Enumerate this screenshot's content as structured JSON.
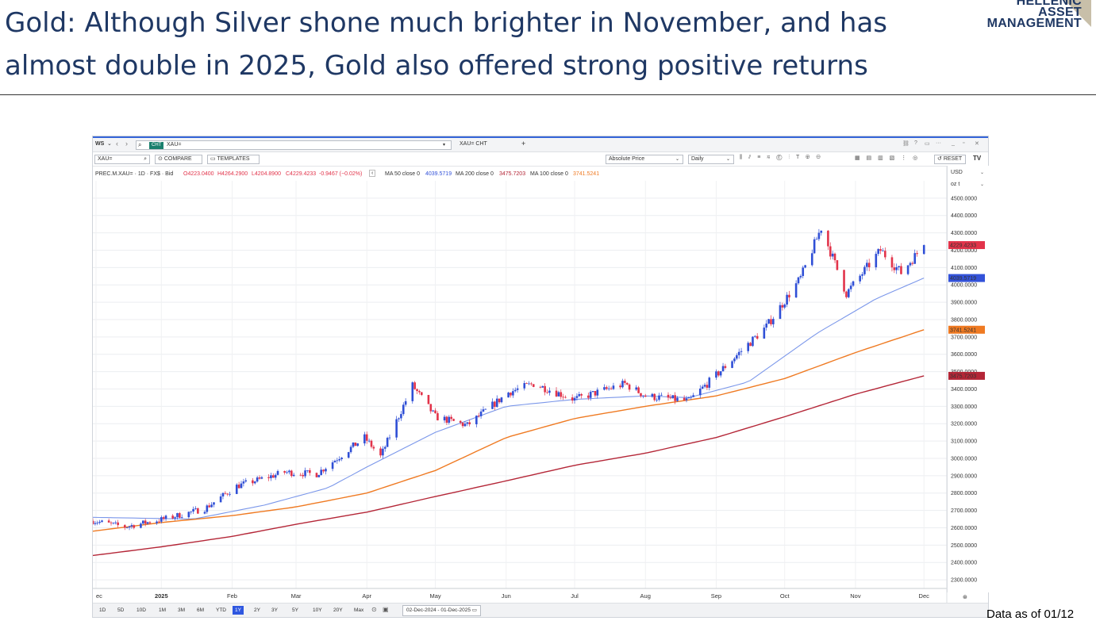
{
  "title": "Gold: Although Silver shone much brighter in November, and has almost double in 2025, Gold also offered strong positive returns",
  "logo": {
    "line1": "HELLENIC",
    "line2": "ASSET",
    "line3": "MANAGEMENT"
  },
  "footnote": "Data as of 01/12",
  "window": {
    "workspace": "WS",
    "chip": "CHT",
    "ric": "XAU=",
    "tab": "XAU= CHT",
    "plus": "+",
    "search_value": "XAU=",
    "compare": "COMPARE",
    "templates": "TEMPLATES",
    "price_type": "Absolute Price",
    "interval": "Daily",
    "reset": "RESET",
    "currency": "USD",
    "unit": "oz t",
    "legend_main": "PREC.M.XAU= · 1D · FX$ · Bid",
    "legend_o": "O4223.0400",
    "legend_h": "H4264.2900",
    "legend_l": "L4204.8900",
    "legend_c": "C4229.4233",
    "legend_chg": "-0.9467 (−0.02%)",
    "ma50_label": "MA 50 close 0",
    "ma50_value": "4039.5719",
    "ma200_label": "MA 200 close 0",
    "ma200_value": "3475.7203",
    "ma100_label": "MA 100 close 0",
    "ma100_value": "3741.5241",
    "ranges": [
      "1D",
      "5D",
      "10D",
      "1M",
      "3M",
      "6M",
      "YTD",
      "1Y",
      "2Y",
      "3Y",
      "5Y",
      "10Y",
      "20Y",
      "Max"
    ],
    "active_range": "1Y",
    "date_range": "02-Dec-2024 - 01-Dec-2025",
    "colors": {
      "up": "#2f4fd6",
      "down": "#e2334a",
      "ma50": "#7b97ea",
      "ma100": "#ef7a22",
      "ma200": "#b42637",
      "accent": "#3565d8"
    }
  },
  "chart_data": {
    "type": "line",
    "title": "",
    "xlabel": "",
    "ylabel": "",
    "ylim": [
      2250,
      4600
    ],
    "y_ticks": [
      "2300.0000",
      "2400.0000",
      "2500.0000",
      "2600.0000",
      "2700.0000",
      "2800.0000",
      "2900.0000",
      "3000.0000",
      "3100.0000",
      "3200.0000",
      "3300.0000",
      "3400.0000",
      "3500.0000",
      "3600.0000",
      "3700.0000",
      "3800.0000",
      "3900.0000",
      "4000.0000",
      "4100.0000",
      "4200.0000",
      "4300.0000",
      "4400.0000",
      "4500.0000"
    ],
    "x_tick_labels": [
      "ec",
      "2025",
      "Feb",
      "Mar",
      "Apr",
      "May",
      "Jun",
      "Jul",
      "Aug",
      "Sep",
      "Oct",
      "Nov",
      "Dec"
    ],
    "x_tick_dates": [
      "2024-12-02",
      "2025-01-01",
      "2025-02-01",
      "2025-03-01",
      "2025-04-01",
      "2025-05-01",
      "2025-06-01",
      "2025-07-01",
      "2025-08-01",
      "2025-09-01",
      "2025-10-01",
      "2025-11-01",
      "2025-12-01"
    ],
    "x_start": "2024-12-02",
    "x_end": "2025-12-11",
    "series_close": {
      "dates": [
        "2024-12-02",
        "2024-12-16",
        "2025-01-02",
        "2025-01-20",
        "2025-02-03",
        "2025-02-24",
        "2025-03-10",
        "2025-03-31",
        "2025-04-07",
        "2025-04-21",
        "2025-05-01",
        "2025-05-15",
        "2025-06-02",
        "2025-06-13",
        "2025-07-01",
        "2025-07-23",
        "2025-08-01",
        "2025-08-20",
        "2025-09-01",
        "2025-09-23",
        "2025-10-08",
        "2025-10-17",
        "2025-10-28",
        "2025-11-12",
        "2025-11-21",
        "2025-12-01"
      ],
      "values": [
        2640,
        2605,
        2650,
        2710,
        2840,
        2920,
        2910,
        3120,
        3010,
        3420,
        3240,
        3190,
        3380,
        3430,
        3340,
        3430,
        3360,
        3330,
        3480,
        3760,
        4040,
        4330,
        3950,
        4200,
        4070,
        4229.42
      ]
    },
    "series": [
      {
        "name": "MA 50 close 0",
        "last": 4039.5719,
        "dates": [
          "2024-12-02",
          "2025-01-15",
          "2025-02-15",
          "2025-03-15",
          "2025-04-01",
          "2025-05-01",
          "2025-06-01",
          "2025-07-01",
          "2025-08-01",
          "2025-08-20",
          "2025-09-15",
          "2025-10-15",
          "2025-11-10",
          "2025-12-01"
        ],
        "values": [
          2660,
          2650,
          2730,
          2830,
          2950,
          3150,
          3300,
          3340,
          3360,
          3350,
          3440,
          3720,
          3920,
          4039.57
        ]
      },
      {
        "name": "MA 100 close 0",
        "last": 3741.5241,
        "dates": [
          "2024-12-02",
          "2025-01-01",
          "2025-02-01",
          "2025-03-01",
          "2025-04-01",
          "2025-05-01",
          "2025-06-01",
          "2025-07-01",
          "2025-08-01",
          "2025-09-01",
          "2025-10-01",
          "2025-11-01",
          "2025-12-01"
        ],
        "values": [
          2580,
          2630,
          2670,
          2720,
          2800,
          2930,
          3120,
          3230,
          3300,
          3360,
          3460,
          3610,
          3741.52
        ]
      },
      {
        "name": "MA 200 close 0",
        "last": 3475.7203,
        "dates": [
          "2024-12-02",
          "2025-01-01",
          "2025-02-01",
          "2025-03-01",
          "2025-04-01",
          "2025-05-01",
          "2025-06-01",
          "2025-07-01",
          "2025-08-01",
          "2025-09-01",
          "2025-10-01",
          "2025-11-01",
          "2025-12-01"
        ],
        "values": [
          2440,
          2490,
          2550,
          2620,
          2690,
          2780,
          2870,
          2960,
          3030,
          3120,
          3240,
          3370,
          3475.72
        ]
      }
    ],
    "last_labels": [
      {
        "value": 4229.4233,
        "text": "4229.4233",
        "color": "#e2334a"
      },
      {
        "value": 4039.5719,
        "text": "4039.5719",
        "color": "#3352d9"
      },
      {
        "value": 3741.5241,
        "text": "3741.5241",
        "color": "#ef7a22"
      },
      {
        "value": 3475.7203,
        "text": "3475.7203",
        "color": "#b42637"
      }
    ],
    "grid": true,
    "legend": "top-left"
  }
}
